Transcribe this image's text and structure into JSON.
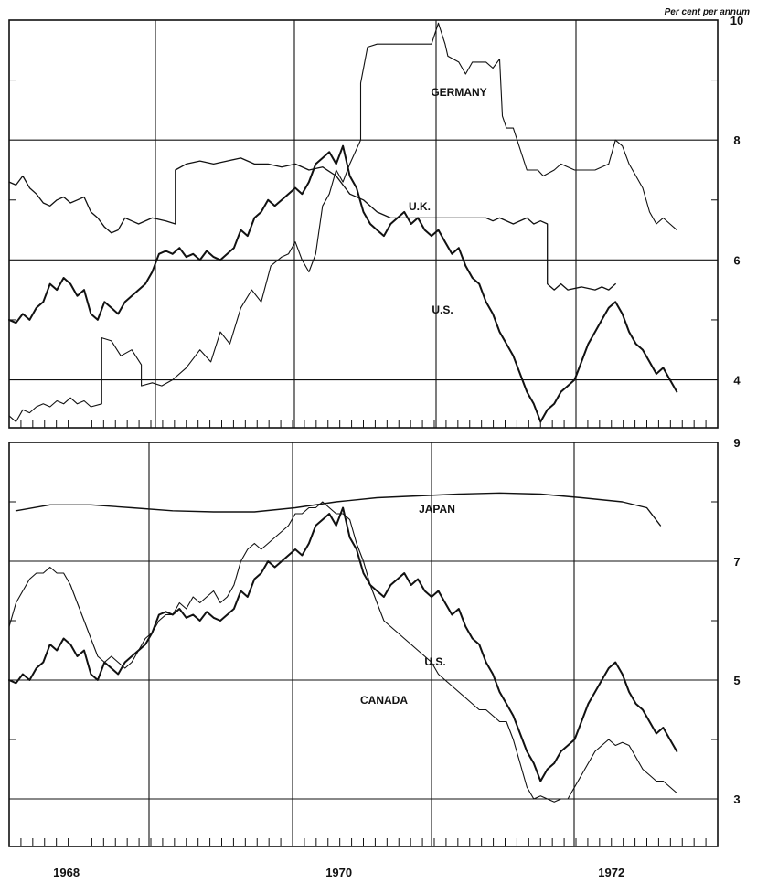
{
  "unit_label": "Per cent per annum",
  "chart_data": [
    {
      "type": "line",
      "panel": "top",
      "xlim": [
        1967.0,
        1972.2
      ],
      "ylim": [
        3.2,
        10.0
      ],
      "y_ticks": [
        4,
        6,
        8,
        10
      ],
      "x_tick_labels": [],
      "grid": true,
      "series": [
        {
          "name": "GERMANY",
          "x": [
            1967.0,
            1967.05,
            1967.1,
            1967.15,
            1967.2,
            1967.25,
            1967.3,
            1967.35,
            1967.4,
            1967.45,
            1967.5,
            1967.55,
            1967.6,
            1967.68,
            1967.68,
            1967.75,
            1967.82,
            1967.9,
            1967.97,
            1967.97,
            1968.05,
            1968.12,
            1968.2,
            1968.3,
            1968.4,
            1968.48,
            1968.55,
            1968.62,
            1968.7,
            1968.78,
            1968.85,
            1968.92,
            1969.0,
            1969.05,
            1969.1,
            1969.15,
            1969.2,
            1969.25,
            1969.3,
            1969.35,
            1969.4,
            1969.45,
            1969.5,
            1969.58,
            1969.58,
            1969.63,
            1969.7,
            1969.8,
            1969.9,
            1970.0,
            1970.1,
            1970.15,
            1970.2,
            1970.22,
            1970.3,
            1970.35,
            1970.4,
            1970.45,
            1970.5,
            1970.55,
            1970.6,
            1970.62,
            1970.65,
            1970.7,
            1970.8,
            1970.88,
            1970.92,
            1971.0,
            1971.05,
            1971.15,
            1971.3,
            1971.4,
            1971.45,
            1971.5,
            1971.55,
            1971.6,
            1971.65,
            1971.7,
            1971.75,
            1971.8,
            1971.85,
            1971.9
          ],
          "y": [
            3.4,
            3.3,
            3.5,
            3.45,
            3.55,
            3.6,
            3.55,
            3.65,
            3.6,
            3.7,
            3.6,
            3.65,
            3.55,
            3.6,
            4.7,
            4.65,
            4.4,
            4.5,
            4.25,
            3.9,
            3.95,
            3.9,
            4.0,
            4.2,
            4.5,
            4.3,
            4.8,
            4.6,
            5.2,
            5.5,
            5.3,
            5.9,
            6.05,
            6.1,
            6.3,
            6.0,
            5.8,
            6.1,
            6.9,
            7.1,
            7.5,
            7.3,
            7.6,
            8.0,
            8.95,
            9.55,
            9.6,
            9.6,
            9.6,
            9.6,
            9.6,
            9.95,
            9.6,
            9.4,
            9.3,
            9.1,
            9.3,
            9.3,
            9.3,
            9.2,
            9.35,
            8.4,
            8.2,
            8.2,
            7.5,
            7.5,
            7.4,
            7.5,
            7.6,
            7.5,
            7.5,
            7.6,
            8.0,
            7.9,
            7.6,
            7.4,
            7.2,
            6.8,
            6.6,
            6.7,
            6.6,
            6.5
          ]
        },
        {
          "name": "U.K.",
          "x": [
            1967.0,
            1967.05,
            1967.1,
            1967.15,
            1967.2,
            1967.25,
            1967.3,
            1967.35,
            1967.4,
            1967.45,
            1967.5,
            1967.55,
            1967.6,
            1967.65,
            1967.7,
            1967.75,
            1967.8,
            1967.85,
            1967.9,
            1967.95,
            1968.05,
            1968.15,
            1968.22,
            1968.22,
            1968.3,
            1968.4,
            1968.5,
            1968.6,
            1968.7,
            1968.8,
            1968.9,
            1969.0,
            1969.1,
            1969.2,
            1969.3,
            1969.4,
            1969.5,
            1969.6,
            1969.7,
            1969.8,
            1969.9,
            1970.0,
            1970.1,
            1970.2,
            1970.3,
            1970.4,
            1970.5,
            1970.55,
            1970.6,
            1970.7,
            1970.8,
            1970.85,
            1970.9,
            1970.95,
            1970.95,
            1971.0,
            1971.05,
            1971.1,
            1971.2,
            1971.3,
            1971.35,
            1971.4,
            1971.45
          ],
          "y": [
            7.3,
            7.25,
            7.4,
            7.2,
            7.1,
            6.95,
            6.9,
            7.0,
            7.05,
            6.95,
            7.0,
            7.05,
            6.8,
            6.7,
            6.55,
            6.45,
            6.5,
            6.7,
            6.65,
            6.6,
            6.7,
            6.65,
            6.6,
            7.5,
            7.6,
            7.65,
            7.6,
            7.65,
            7.7,
            7.6,
            7.6,
            7.55,
            7.6,
            7.5,
            7.55,
            7.4,
            7.1,
            7.0,
            6.8,
            6.7,
            6.7,
            6.7,
            6.7,
            6.7,
            6.7,
            6.7,
            6.7,
            6.65,
            6.7,
            6.6,
            6.7,
            6.6,
            6.65,
            6.6,
            5.6,
            5.5,
            5.6,
            5.5,
            5.55,
            5.5,
            5.55,
            5.5,
            5.6
          ]
        },
        {
          "name": "U.S.",
          "x": [
            1967.0,
            1967.05,
            1967.1,
            1967.15,
            1967.2,
            1967.25,
            1967.3,
            1967.35,
            1967.4,
            1967.45,
            1967.5,
            1967.55,
            1967.6,
            1967.65,
            1967.7,
            1967.75,
            1967.8,
            1967.85,
            1967.9,
            1967.95,
            1968.0,
            1968.05,
            1968.1,
            1968.15,
            1968.2,
            1968.25,
            1968.3,
            1968.35,
            1968.4,
            1968.45,
            1968.5,
            1968.55,
            1968.6,
            1968.65,
            1968.7,
            1968.75,
            1968.8,
            1968.85,
            1968.9,
            1968.95,
            1969.0,
            1969.05,
            1969.1,
            1969.15,
            1969.2,
            1969.25,
            1969.3,
            1969.35,
            1969.4,
            1969.45,
            1969.5,
            1969.55,
            1969.6,
            1969.65,
            1969.7,
            1969.75,
            1969.8,
            1969.85,
            1969.9,
            1969.95,
            1970.0,
            1970.05,
            1970.1,
            1970.15,
            1970.2,
            1970.25,
            1970.3,
            1970.35,
            1970.4,
            1970.45,
            1970.5,
            1970.55,
            1970.6,
            1970.65,
            1970.7,
            1970.75,
            1970.8,
            1970.85,
            1970.9,
            1970.95,
            1971.0,
            1971.05,
            1971.1,
            1971.15,
            1971.2,
            1971.25,
            1971.3,
            1971.35,
            1971.4,
            1971.45,
            1971.5,
            1971.55,
            1971.6,
            1971.65,
            1971.7,
            1971.75,
            1971.8,
            1971.85,
            1971.9
          ],
          "y": [
            5.0,
            4.95,
            5.1,
            5.0,
            5.2,
            5.3,
            5.6,
            5.5,
            5.7,
            5.6,
            5.4,
            5.5,
            5.1,
            5.0,
            5.3,
            5.2,
            5.1,
            5.3,
            5.4,
            5.5,
            5.6,
            5.8,
            6.1,
            6.15,
            6.1,
            6.2,
            6.05,
            6.1,
            6.0,
            6.15,
            6.05,
            6.0,
            6.1,
            6.2,
            6.5,
            6.4,
            6.7,
            6.8,
            7.0,
            6.9,
            7.0,
            7.1,
            7.2,
            7.1,
            7.3,
            7.6,
            7.7,
            7.8,
            7.6,
            7.9,
            7.4,
            7.2,
            6.8,
            6.6,
            6.5,
            6.4,
            6.6,
            6.7,
            6.8,
            6.6,
            6.7,
            6.5,
            6.4,
            6.5,
            6.3,
            6.1,
            6.2,
            5.9,
            5.7,
            5.6,
            5.3,
            5.1,
            4.8,
            4.6,
            4.4,
            4.1,
            3.8,
            3.6,
            3.3,
            3.5,
            3.6,
            3.8,
            3.9,
            4.0,
            4.3,
            4.6,
            4.8,
            5.0,
            5.2,
            5.3,
            5.1,
            4.8,
            4.6,
            4.5,
            4.3,
            4.1,
            4.2,
            4.0,
            3.8
          ]
        }
      ]
    },
    {
      "type": "line",
      "panel": "bottom",
      "xlim": [
        1967.0,
        1972.2
      ],
      "ylim": [
        2.2,
        9.0
      ],
      "y_ticks": [
        3,
        5,
        7,
        9
      ],
      "x_tick_labels": [
        {
          "x": 1967.42,
          "label": "1968"
        },
        {
          "x": 1969.42,
          "label": "1970"
        },
        {
          "x": 1971.42,
          "label": "1972"
        }
      ],
      "grid": true,
      "series": [
        {
          "name": "JAPAN",
          "x": [
            1967.05,
            1967.3,
            1967.6,
            1967.9,
            1968.2,
            1968.5,
            1968.8,
            1969.1,
            1969.4,
            1969.7,
            1970.0,
            1970.3,
            1970.6,
            1970.9,
            1971.2,
            1971.5,
            1971.68,
            1971.78
          ],
          "y": [
            7.85,
            7.95,
            7.95,
            7.9,
            7.85,
            7.83,
            7.83,
            7.9,
            8.0,
            8.07,
            8.1,
            8.13,
            8.15,
            8.13,
            8.07,
            8.0,
            7.9,
            7.6
          ]
        },
        {
          "name": "U.S.",
          "x": [
            1967.0,
            1967.05,
            1967.1,
            1967.15,
            1967.2,
            1967.25,
            1967.3,
            1967.35,
            1967.4,
            1967.45,
            1967.5,
            1967.55,
            1967.6,
            1967.65,
            1967.7,
            1967.75,
            1967.8,
            1967.85,
            1967.9,
            1967.95,
            1968.0,
            1968.05,
            1968.1,
            1968.15,
            1968.2,
            1968.25,
            1968.3,
            1968.35,
            1968.4,
            1968.45,
            1968.5,
            1968.55,
            1968.6,
            1968.65,
            1968.7,
            1968.75,
            1968.8,
            1968.85,
            1968.9,
            1968.95,
            1969.0,
            1969.05,
            1969.1,
            1969.15,
            1969.2,
            1969.25,
            1969.3,
            1969.35,
            1969.4,
            1969.45,
            1969.5,
            1969.55,
            1969.6,
            1969.65,
            1969.7,
            1969.75,
            1969.8,
            1969.85,
            1969.9,
            1969.95,
            1970.0,
            1970.05,
            1970.1,
            1970.15,
            1970.2,
            1970.25,
            1970.3,
            1970.35,
            1970.4,
            1970.45,
            1970.5,
            1970.55,
            1970.6,
            1970.65,
            1970.7,
            1970.75,
            1970.8,
            1970.85,
            1970.9,
            1970.95,
            1971.0,
            1971.05,
            1971.1,
            1971.15,
            1971.2,
            1971.25,
            1971.3,
            1971.35,
            1971.4,
            1971.45,
            1971.5,
            1971.55,
            1971.6,
            1971.65,
            1971.7,
            1971.75,
            1971.8,
            1971.85,
            1971.9
          ],
          "y": [
            5.0,
            4.95,
            5.1,
            5.0,
            5.2,
            5.3,
            5.6,
            5.5,
            5.7,
            5.6,
            5.4,
            5.5,
            5.1,
            5.0,
            5.3,
            5.2,
            5.1,
            5.3,
            5.4,
            5.5,
            5.6,
            5.8,
            6.1,
            6.15,
            6.1,
            6.2,
            6.05,
            6.1,
            6.0,
            6.15,
            6.05,
            6.0,
            6.1,
            6.2,
            6.5,
            6.4,
            6.7,
            6.8,
            7.0,
            6.9,
            7.0,
            7.1,
            7.2,
            7.1,
            7.3,
            7.6,
            7.7,
            7.8,
            7.6,
            7.9,
            7.4,
            7.2,
            6.8,
            6.6,
            6.5,
            6.4,
            6.6,
            6.7,
            6.8,
            6.6,
            6.7,
            6.5,
            6.4,
            6.5,
            6.3,
            6.1,
            6.2,
            5.9,
            5.7,
            5.6,
            5.3,
            5.1,
            4.8,
            4.6,
            4.4,
            4.1,
            3.8,
            3.6,
            3.3,
            3.5,
            3.6,
            3.8,
            3.9,
            4.0,
            4.3,
            4.6,
            4.8,
            5.0,
            5.2,
            5.3,
            5.1,
            4.8,
            4.6,
            4.5,
            4.3,
            4.1,
            4.2,
            4.0,
            3.8
          ]
        },
        {
          "name": "CANADA",
          "x": [
            1967.0,
            1967.05,
            1967.1,
            1967.15,
            1967.2,
            1967.25,
            1967.3,
            1967.35,
            1967.4,
            1967.45,
            1967.5,
            1967.55,
            1967.6,
            1967.65,
            1967.7,
            1967.75,
            1967.8,
            1967.85,
            1967.9,
            1967.95,
            1968.0,
            1968.05,
            1968.1,
            1968.15,
            1968.2,
            1968.25,
            1968.3,
            1968.35,
            1968.4,
            1968.45,
            1968.5,
            1968.55,
            1968.6,
            1968.65,
            1968.7,
            1968.75,
            1968.8,
            1968.85,
            1968.9,
            1968.95,
            1969.0,
            1969.05,
            1969.1,
            1969.15,
            1969.2,
            1969.25,
            1969.3,
            1969.35,
            1969.4,
            1969.45,
            1969.5,
            1969.55,
            1969.6,
            1969.65,
            1969.7,
            1969.75,
            1969.8,
            1969.85,
            1969.9,
            1969.95,
            1970.0,
            1970.05,
            1970.1,
            1970.15,
            1970.2,
            1970.25,
            1970.3,
            1970.35,
            1970.4,
            1970.45,
            1970.5,
            1970.55,
            1970.6,
            1970.65,
            1970.7,
            1970.75,
            1970.8,
            1970.85,
            1970.9,
            1970.95,
            1971.0,
            1971.05,
            1971.1,
            1971.15,
            1971.2,
            1971.25,
            1971.3,
            1971.35,
            1971.4,
            1971.45,
            1971.5,
            1971.55,
            1971.6,
            1971.65,
            1971.7,
            1971.75,
            1971.8,
            1971.85,
            1971.9
          ],
          "y": [
            5.9,
            6.3,
            6.5,
            6.7,
            6.8,
            6.8,
            6.9,
            6.8,
            6.8,
            6.6,
            6.3,
            6.0,
            5.7,
            5.4,
            5.3,
            5.4,
            5.3,
            5.2,
            5.3,
            5.5,
            5.7,
            5.8,
            6.0,
            6.1,
            6.1,
            6.3,
            6.2,
            6.4,
            6.3,
            6.4,
            6.5,
            6.3,
            6.4,
            6.6,
            7.0,
            7.2,
            7.3,
            7.2,
            7.3,
            7.4,
            7.5,
            7.6,
            7.8,
            7.8,
            7.9,
            7.9,
            8.0,
            7.9,
            7.8,
            7.8,
            7.7,
            7.3,
            7.0,
            6.6,
            6.3,
            6.0,
            5.9,
            5.8,
            5.7,
            5.6,
            5.5,
            5.4,
            5.3,
            5.1,
            5.0,
            4.9,
            4.8,
            4.7,
            4.6,
            4.5,
            4.5,
            4.4,
            4.3,
            4.3,
            4.0,
            3.6,
            3.2,
            3.0,
            3.05,
            3.0,
            2.95,
            3.0,
            3.0,
            3.2,
            3.4,
            3.6,
            3.8,
            3.9,
            4.0,
            3.9,
            3.95,
            3.9,
            3.7,
            3.5,
            3.4,
            3.3,
            3.3,
            3.2,
            3.1
          ]
        }
      ]
    }
  ]
}
